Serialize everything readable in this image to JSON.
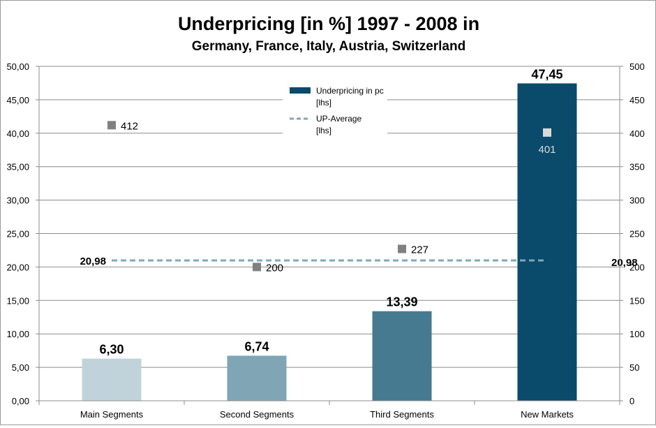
{
  "chart_data": {
    "type": "bar",
    "title": "Underpricing  [in %] 1997 - 2008 in",
    "subtitle": "Germany, France, Italy, Austria, Switzerland",
    "categories": [
      "Main Segments",
      "Second Segments",
      "Third Segments",
      "New Markets"
    ],
    "series": [
      {
        "name": "Underpricing in pc",
        "name_suffix": "[lhs]",
        "type": "bar",
        "axis": "left",
        "values": [
          6.3,
          6.74,
          13.39,
          47.45
        ],
        "labels": [
          "6,30",
          "6,74",
          "13,39",
          "47,45"
        ],
        "colors": [
          "#c0d3da",
          "#80a6b5",
          "#467a90",
          "#0a4a6a"
        ]
      },
      {
        "name": "UP-Average",
        "name_suffix": "[lhs]",
        "type": "line",
        "axis": "left",
        "value": 20.98,
        "label": "20,98",
        "color": "#7fa8b8"
      },
      {
        "type": "scatter",
        "axis": "right",
        "values": [
          412,
          200,
          227,
          401
        ],
        "labels": [
          "412",
          "200",
          "227",
          "401"
        ],
        "color": "#808080",
        "color_on_bar": "#d9d9d9"
      }
    ],
    "y_left": {
      "min": 0,
      "max": 50,
      "step": 5,
      "tick_labels": [
        "0,00",
        "5,00",
        "10,00",
        "15,00",
        "20,00",
        "25,00",
        "30,00",
        "35,00",
        "40,00",
        "45,00",
        "50,00"
      ]
    },
    "y_right": {
      "min": 0,
      "max": 500,
      "step": 50,
      "tick_labels": [
        "0",
        "50",
        "100",
        "150",
        "200",
        "250",
        "300",
        "350",
        "400",
        "450",
        "500"
      ]
    },
    "grid": true,
    "legend_position": "top-center"
  }
}
